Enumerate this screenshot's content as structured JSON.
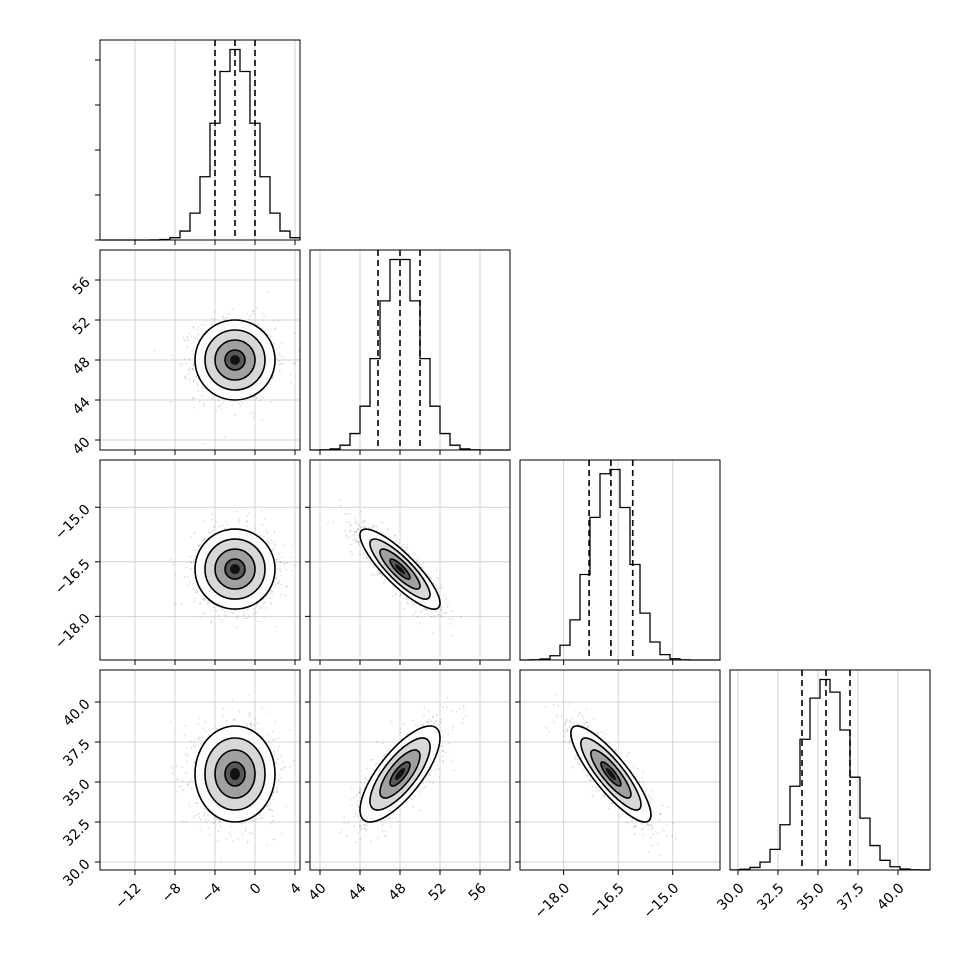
{
  "chart_data": {
    "type": "scatter",
    "subtype": "corner-plot",
    "title": "",
    "parameters": [
      {
        "label": "",
        "range": [
          -15.5,
          4.5
        ],
        "ticks": [
          -12,
          -8,
          -4,
          0,
          4
        ],
        "tick_labels": [
          "−12",
          "−8",
          "−4",
          "0",
          "4"
        ],
        "mean": -2.0,
        "sigma": 2.0,
        "quantiles": [
          -4.0,
          -2.0,
          0.0
        ],
        "grid": [
          -12,
          -8,
          -4,
          0,
          4
        ]
      },
      {
        "label": "",
        "range": [
          39.0,
          59.0
        ],
        "ticks": [
          40,
          44,
          48,
          52,
          56
        ],
        "tick_labels": [
          "40",
          "44",
          "48",
          "52",
          "56"
        ],
        "mean": 48.0,
        "sigma": 2.0,
        "quantiles": [
          45.8,
          48.0,
          50.0
        ],
        "grid": [
          40,
          44,
          48,
          52,
          56
        ]
      },
      {
        "label": "",
        "range": [
          -19.2,
          -13.7
        ],
        "ticks": [
          -18.0,
          -16.5,
          -15.0
        ],
        "tick_labels": [
          "−18.0",
          "−16.5",
          "−15.0"
        ],
        "mean": -16.7,
        "sigma": 0.55,
        "quantiles": [
          -17.3,
          -16.7,
          -16.1
        ],
        "grid": [
          -18.0,
          -16.5,
          -15.0
        ]
      },
      {
        "label": "",
        "range": [
          29.5,
          42.0
        ],
        "ticks": [
          30.0,
          32.5,
          35.0,
          37.5,
          40.0
        ],
        "tick_labels": [
          "30.0",
          "32.5",
          "35.0",
          "37.5",
          "40.0"
        ],
        "mean": 35.5,
        "sigma": 1.5,
        "quantiles": [
          34.0,
          35.5,
          37.0
        ],
        "grid": [
          30.0,
          32.5,
          35.0,
          37.5,
          40.0
        ]
      }
    ],
    "correlations": {
      "1-0": 0.0,
      "2-0": 0.0,
      "2-1": -0.85,
      "3-0": 0.0,
      "3-1": 0.75,
      "3-2": -0.85
    },
    "histogram": {
      "bins": 20,
      "quantile_style": "dashed"
    },
    "contour_levels_sigma": [
      0.5,
      1.0,
      1.5,
      2.0
    ],
    "grid": true,
    "legend": "none"
  }
}
